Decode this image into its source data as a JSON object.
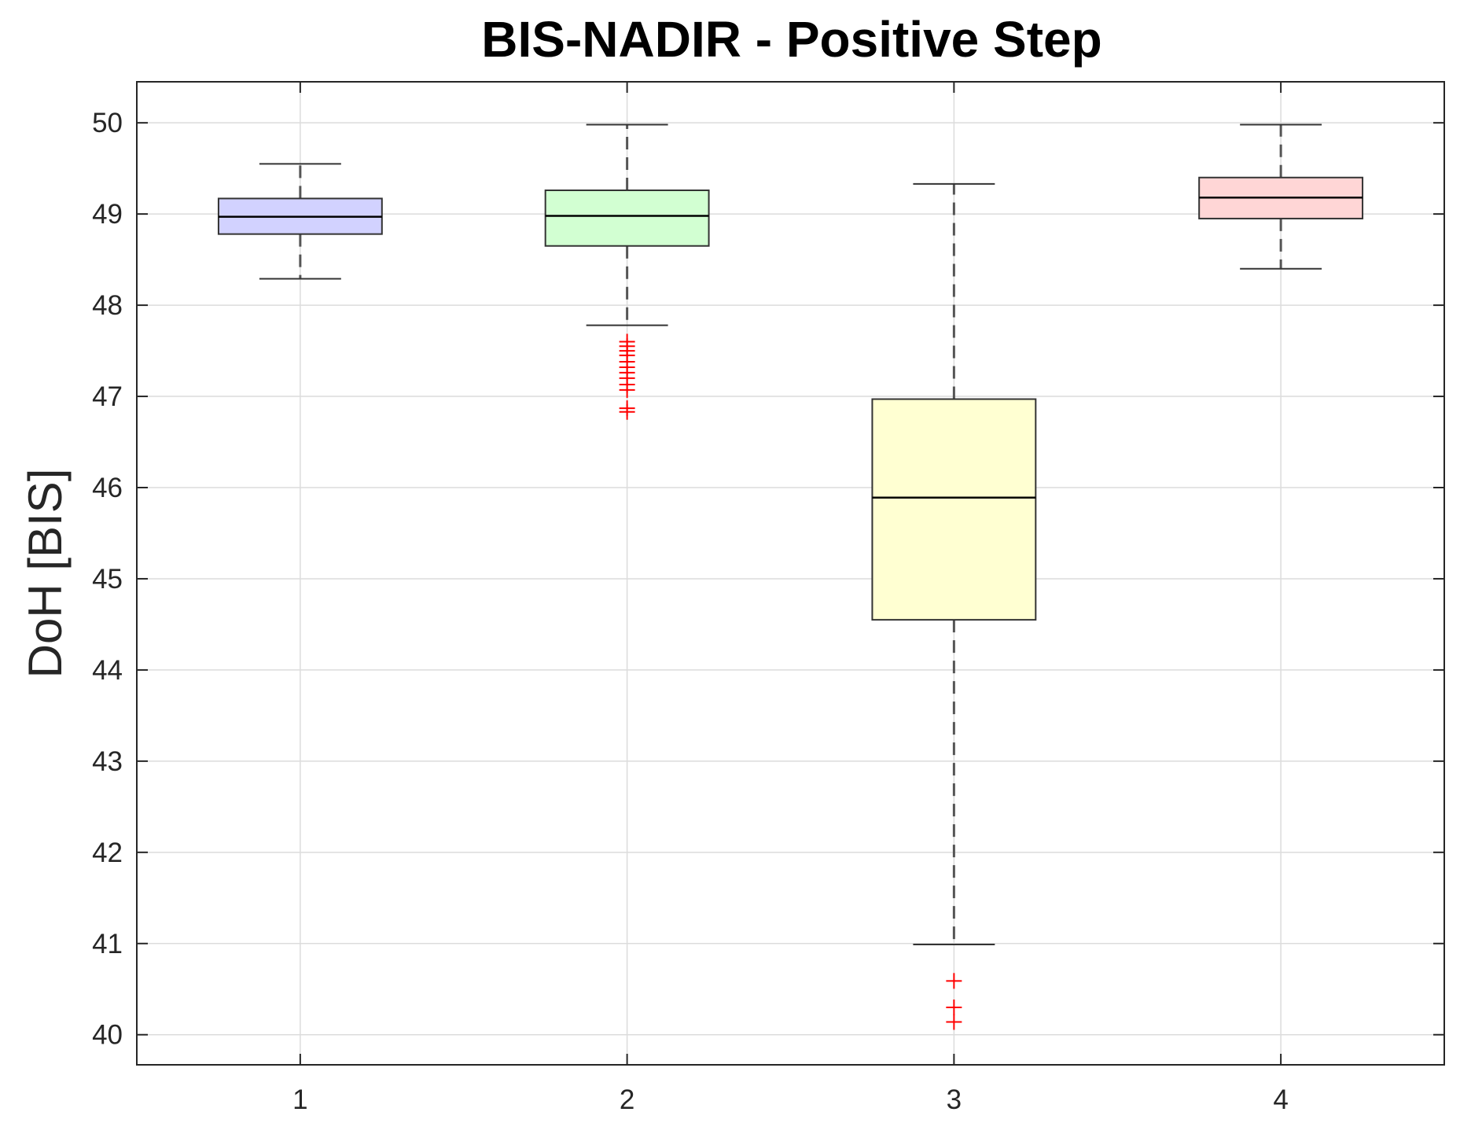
{
  "chart_data": {
    "type": "boxplot",
    "title": "BIS-NADIR - Positive Step",
    "xlabel": "",
    "ylabel": "DoH [BIS]",
    "xlim": [
      0.5,
      4.5
    ],
    "ylim": [
      39.67,
      50.45
    ],
    "grid": true,
    "categories": [
      "1",
      "2",
      "3",
      "4"
    ],
    "y_ticks": [
      40,
      41,
      42,
      43,
      44,
      45,
      46,
      47,
      48,
      49,
      50
    ],
    "boxes": [
      {
        "category": "1",
        "whisker_low": 48.29,
        "q1": 48.78,
        "median": 48.97,
        "q3": 49.17,
        "whisker_high": 49.55,
        "fill": "#d2d2ff",
        "outliers": []
      },
      {
        "category": "2",
        "whisker_low": 47.78,
        "q1": 48.65,
        "median": 48.98,
        "q3": 49.26,
        "whisker_high": 49.98,
        "fill": "#d2ffd2",
        "outliers": [
          47.6,
          47.55,
          47.5,
          47.45,
          47.38,
          47.32,
          47.26,
          47.2,
          47.13,
          47.07,
          46.87,
          46.83
        ]
      },
      {
        "category": "3",
        "whisker_low": 40.99,
        "q1": 44.55,
        "median": 45.89,
        "q3": 46.97,
        "whisker_high": 49.33,
        "fill": "#ffffd2",
        "outliers": [
          40.59,
          40.3,
          40.14
        ]
      },
      {
        "category": "4",
        "whisker_low": 48.4,
        "q1": 48.95,
        "median": 49.18,
        "q3": 49.4,
        "whisker_high": 49.98,
        "fill": "#ffd6d6",
        "outliers": []
      }
    ],
    "colors": {
      "outlier": "#ff0000",
      "median": "#000000",
      "box_edge": "#333333",
      "whisker": "#555555",
      "grid": "#dcdcdc",
      "axes": "#262626"
    }
  }
}
